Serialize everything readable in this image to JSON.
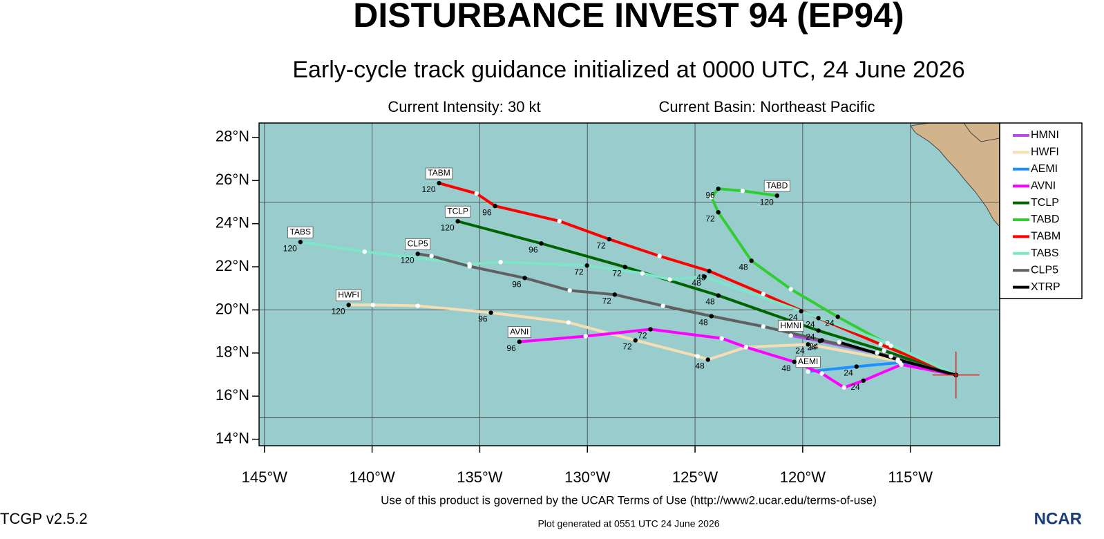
{
  "chart_data": {
    "type": "track",
    "title": "DISTURBANCE INVEST 94 (EP94)",
    "subtitle": "Early-cycle track guidance initialized at 0000 UTC, 24 June 2026",
    "intensity": "Current Intensity: 30 kt",
    "basin": "Current Basin: Northeast Pacific",
    "terms": "Use of this product is governed by the UCAR Terms of Use (http://www2.ucar.edu/terms-of-use)",
    "version": "TCGP v2.5.2",
    "generated": "Plot generated at 0551 UTC  24 June 2026",
    "logo": "NCAR",
    "xlim": [
      -145.25,
      -110.85
    ],
    "ylim": [
      13.7,
      28.67
    ],
    "xticks": [
      {
        "value": -145,
        "label": "145°W"
      },
      {
        "value": -140,
        "label": "140°W"
      },
      {
        "value": -135,
        "label": "135°W"
      },
      {
        "value": -130,
        "label": "130°W"
      },
      {
        "value": -125,
        "label": "125°W"
      },
      {
        "value": -120,
        "label": "120°W"
      },
      {
        "value": -115,
        "label": "115°W"
      }
    ],
    "yticks": [
      {
        "value": 14,
        "label": "14°N"
      },
      {
        "value": 16,
        "label": "16°N"
      },
      {
        "value": 18,
        "label": "18°N"
      },
      {
        "value": 20,
        "label": "20°N"
      },
      {
        "value": 22,
        "label": "22°N"
      },
      {
        "value": 24,
        "label": "24°N"
      },
      {
        "value": 26,
        "label": "26°N"
      },
      {
        "value": 28,
        "label": "28°N"
      }
    ],
    "xgrid": [
      -145,
      -140,
      -135,
      -130,
      -125,
      -120,
      -115
    ],
    "ygrid": [
      15,
      20,
      25
    ],
    "series": [
      {
        "name": "HMNI",
        "color": "#b84ce8",
        "lon": [
          -112.88,
          -115.9,
          -119.2,
          -120.55
        ],
        "lat": [
          16.98,
          17.85,
          18.56,
          18.81
        ],
        "labels": [
          null,
          null,
          "24",
          null
        ]
      },
      {
        "name": "HWFI",
        "color": "#f5deb3",
        "lon": [
          -112.88,
          -115.58,
          -119.75,
          -122.63,
          -124.4,
          -124.88,
          -127.77,
          -130.88,
          -134.48,
          -137.88,
          -139.96,
          -141.09
        ],
        "lat": [
          16.98,
          17.63,
          18.4,
          18.27,
          17.69,
          17.85,
          18.59,
          19.42,
          19.87,
          20.19,
          20.23,
          20.23
        ],
        "labels": [
          null,
          null,
          "24",
          null,
          "48",
          null,
          "72",
          null,
          "96",
          null,
          null,
          "120"
        ]
      },
      {
        "name": "AEMI",
        "color": "#1e90ff",
        "lon": [
          -112.88,
          -115.48,
          -117.5,
          -119.75
        ],
        "lat": [
          16.98,
          17.56,
          17.37,
          17.14
        ],
        "labels": [
          null,
          null,
          "24",
          null
        ]
      },
      {
        "name": "AVNI",
        "color": "#ff00ff",
        "lon": [
          -112.88,
          -115.42,
          -117.18,
          -118.08,
          -119.11,
          -120.39,
          -122.63,
          -123.76,
          -127.07,
          -130.08,
          -133.16
        ],
        "lat": [
          16.98,
          17.46,
          16.72,
          16.4,
          17.05,
          17.59,
          18.27,
          18.68,
          19.1,
          18.78,
          18.52
        ],
        "labels": [
          null,
          null,
          "24",
          null,
          null,
          "48",
          null,
          null,
          "72",
          null,
          "96"
        ]
      },
      {
        "name": "TCLP",
        "color": "#006400",
        "lon": [
          -112.88,
          -116.22,
          -119.27,
          -123.92,
          -128.25,
          -132.14,
          -136.02
        ],
        "lat": [
          16.98,
          18.11,
          19.04,
          20.67,
          21.99,
          23.08,
          24.11
        ],
        "labels": [
          null,
          null,
          "24",
          "48",
          "72",
          "96",
          "120"
        ]
      },
      {
        "name": "TABD",
        "color": "#32cd32",
        "lon": [
          -112.88,
          -115.9,
          -118.37,
          -120.55,
          -122.38,
          -123.92,
          -124.24,
          -123.92,
          -122.79,
          -121.19
        ],
        "lat": [
          16.98,
          18.33,
          19.68,
          20.96,
          22.28,
          24.53,
          25.23,
          25.62,
          25.52,
          25.3
        ],
        "labels": [
          null,
          null,
          "24",
          null,
          "48",
          "72",
          null,
          "96",
          null,
          "120"
        ]
      },
      {
        "name": "TABM",
        "color": "#ff0000",
        "lon": [
          -112.88,
          -116.38,
          -119.27,
          -121.83,
          -124.34,
          -126.65,
          -128.99,
          -131.3,
          -134.29,
          -135.15,
          -136.89
        ],
        "lat": [
          16.98,
          18.4,
          19.62,
          20.74,
          21.8,
          22.5,
          23.28,
          24.12,
          24.82,
          25.4,
          25.88
        ],
        "labels": [
          null,
          null,
          "24",
          null,
          "48",
          null,
          "72",
          null,
          "96",
          null,
          "120"
        ]
      },
      {
        "name": "TABS",
        "color": "#7fe5c8",
        "lon": [
          -112.88,
          -116.06,
          -120.07,
          -124.56,
          -126.17,
          -127.45,
          -130.02,
          -134.03,
          -135.48,
          -140.35,
          -143.33
        ],
        "lat": [
          16.98,
          18.46,
          19.94,
          21.54,
          21.41,
          21.7,
          22.06,
          22.22,
          22.12,
          22.7,
          23.15
        ],
        "labels": [
          null,
          null,
          "24",
          "48",
          null,
          null,
          "72",
          null,
          null,
          null,
          "120"
        ]
      },
      {
        "name": "CLP5",
        "color": "#606060",
        "lon": [
          -112.88,
          -116.54,
          -119.11,
          -121.83,
          -124.24,
          -126.49,
          -128.73,
          -130.82,
          -132.91,
          -135.47,
          -137.24,
          -137.88
        ],
        "lat": [
          16.98,
          18.01,
          18.59,
          19.23,
          19.71,
          20.19,
          20.71,
          20.9,
          21.48,
          22.02,
          22.5,
          22.6
        ],
        "labels": [
          null,
          null,
          "24",
          null,
          "48",
          null,
          "72",
          null,
          "96",
          null,
          null,
          "120"
        ]
      },
      {
        "name": "XTRP",
        "color": "#000000",
        "lon": [
          -112.88,
          -115.58,
          -118.3
        ],
        "lat": [
          16.98,
          17.69,
          18.5
        ],
        "labels": [
          null,
          null,
          null
        ]
      }
    ]
  }
}
